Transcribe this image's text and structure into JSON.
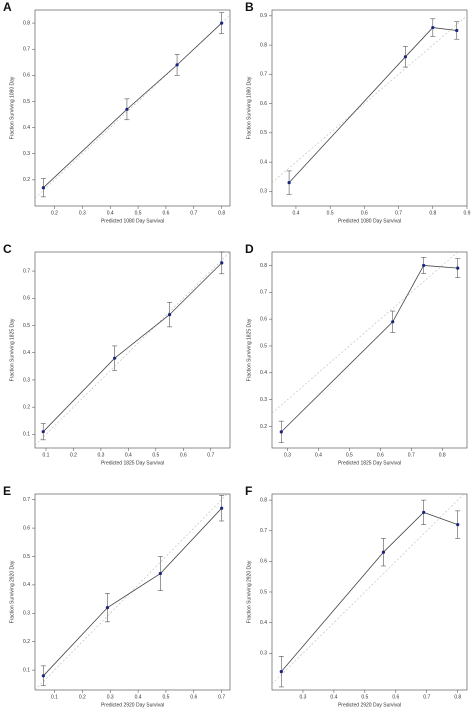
{
  "chart_data": [
    {
      "type": "line",
      "label": "A",
      "xlabel": "Predicted 1080 Day Survival",
      "ylabel": "Fraction Surviving 1080 Day",
      "x": [
        0.16,
        0.46,
        0.64,
        0.8
      ],
      "values": [
        0.17,
        0.47,
        0.64,
        0.8
      ],
      "errors": [
        0.035,
        0.04,
        0.04,
        0.04
      ],
      "xlim": [
        0.13,
        0.83
      ],
      "ylim": [
        0.1,
        0.85
      ],
      "xticks": [
        0.2,
        0.3,
        0.4,
        0.5,
        0.6,
        0.7,
        0.8
      ],
      "yticks": [
        0.2,
        0.3,
        0.4,
        0.5,
        0.6,
        0.7,
        0.8
      ],
      "color": "#1a237e"
    },
    {
      "type": "line",
      "label": "B",
      "xlabel": "Predicted 1080 Day Survival",
      "ylabel": "Fraction Surviving 1080 Day",
      "x": [
        0.38,
        0.72,
        0.8,
        0.87
      ],
      "values": [
        0.33,
        0.76,
        0.86,
        0.85
      ],
      "errors": [
        0.04,
        0.035,
        0.03,
        0.03
      ],
      "xlim": [
        0.33,
        0.9
      ],
      "ylim": [
        0.25,
        0.92
      ],
      "xticks": [
        0.4,
        0.5,
        0.6,
        0.7,
        0.8,
        0.9
      ],
      "yticks": [
        0.3,
        0.4,
        0.5,
        0.6,
        0.7,
        0.8,
        0.9
      ],
      "color": "#1a237e"
    },
    {
      "type": "line",
      "label": "C",
      "xlabel": "Predicted 1825 Day Survival",
      "ylabel": "Fraction Surviving 1825 Day",
      "x": [
        0.09,
        0.35,
        0.55,
        0.74
      ],
      "values": [
        0.11,
        0.38,
        0.54,
        0.73
      ],
      "errors": [
        0.03,
        0.045,
        0.045,
        0.04
      ],
      "xlim": [
        0.06,
        0.77
      ],
      "ylim": [
        0.05,
        0.77
      ],
      "xticks": [
        0.1,
        0.2,
        0.3,
        0.4,
        0.5,
        0.6,
        0.7
      ],
      "yticks": [
        0.1,
        0.2,
        0.3,
        0.4,
        0.5,
        0.6,
        0.7
      ],
      "color": "#1a237e"
    },
    {
      "type": "line",
      "label": "D",
      "xlabel": "Predicted 1825 Day Survival",
      "ylabel": "Fraction Surviving 1825 Day",
      "x": [
        0.28,
        0.64,
        0.74,
        0.85
      ],
      "values": [
        0.18,
        0.59,
        0.8,
        0.79
      ],
      "errors": [
        0.04,
        0.04,
        0.03,
        0.035
      ],
      "xlim": [
        0.25,
        0.88
      ],
      "ylim": [
        0.12,
        0.85
      ],
      "xticks": [
        0.3,
        0.4,
        0.5,
        0.6,
        0.7,
        0.8
      ],
      "yticks": [
        0.2,
        0.3,
        0.4,
        0.5,
        0.6,
        0.7,
        0.8
      ],
      "color": "#1a237e"
    },
    {
      "type": "line",
      "label": "E",
      "xlabel": "Predicted 2920 Day Survival",
      "ylabel": "Fraction Surviving 2920 Day",
      "x": [
        0.06,
        0.29,
        0.48,
        0.7
      ],
      "values": [
        0.08,
        0.32,
        0.44,
        0.67
      ],
      "errors": [
        0.035,
        0.05,
        0.06,
        0.045
      ],
      "xlim": [
        0.03,
        0.73
      ],
      "ylim": [
        0.03,
        0.72
      ],
      "xticks": [
        0.1,
        0.2,
        0.3,
        0.4,
        0.5,
        0.6,
        0.7
      ],
      "yticks": [
        0.1,
        0.2,
        0.3,
        0.4,
        0.5,
        0.6,
        0.7
      ],
      "color": "#1a237e"
    },
    {
      "type": "line",
      "label": "F",
      "xlabel": "Predicted 2920 Day Survival",
      "ylabel": "Fraction Surviving 2920 Day",
      "x": [
        0.23,
        0.56,
        0.69,
        0.8
      ],
      "values": [
        0.24,
        0.63,
        0.76,
        0.72
      ],
      "errors": [
        0.05,
        0.045,
        0.04,
        0.045
      ],
      "xlim": [
        0.2,
        0.83
      ],
      "ylim": [
        0.18,
        0.82
      ],
      "xticks": [
        0.3,
        0.4,
        0.5,
        0.6,
        0.7,
        0.8
      ],
      "yticks": [
        0.3,
        0.4,
        0.5,
        0.6,
        0.7,
        0.8
      ],
      "color": "#1a237e"
    }
  ]
}
